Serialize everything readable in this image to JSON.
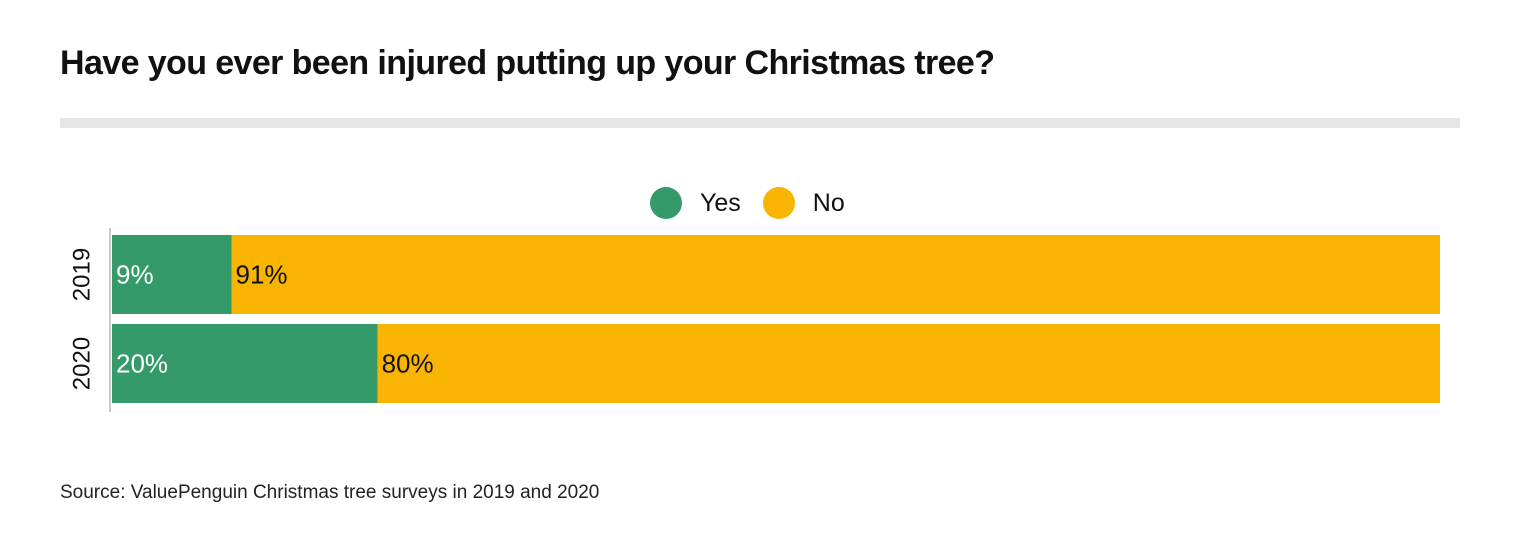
{
  "title": "Have you ever been injured putting up your Christmas tree?",
  "source": "Source: ValuePenguin Christmas tree surveys in 2019 and 2020",
  "colors": {
    "yes": "#359a69",
    "no": "#f8b400",
    "rule": "#e6e6e6",
    "axis": "#c8c8c8"
  },
  "chart_data": {
    "type": "bar",
    "orientation": "horizontal",
    "stacked": true,
    "categories": [
      "2019",
      "2020"
    ],
    "series": [
      {
        "name": "Yes",
        "values": [
          9,
          20
        ],
        "labels": [
          "9%",
          "20%"
        ]
      },
      {
        "name": "No",
        "values": [
          91,
          80
        ],
        "labels": [
          "91%",
          "80%"
        ]
      }
    ],
    "xlim": [
      0,
      100
    ],
    "legend_position": "top-center",
    "grid": false,
    "title": "Have you ever been injured putting up your Christmas tree?"
  }
}
